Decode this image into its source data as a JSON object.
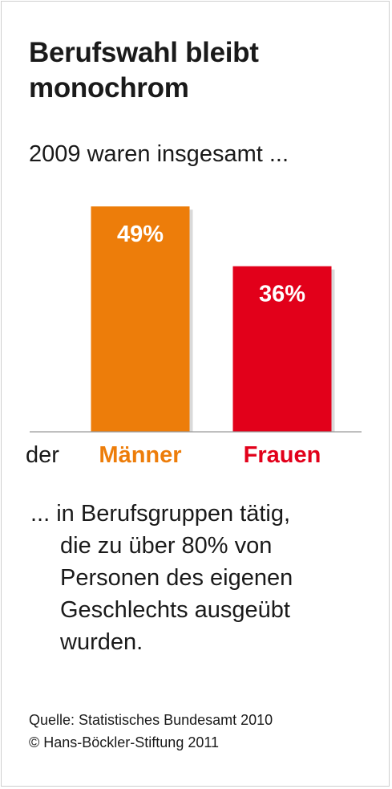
{
  "title": "Berufswahl bleibt monochrom",
  "subtitle": "2009 waren insgesamt ...",
  "x_prefix": "der",
  "body_lines": [
    "... in Berufsgruppen tätig,",
    "die zu über 80% von",
    "Personen des eigenen",
    "Geschlechts ausgeübt",
    "wurden."
  ],
  "source_lines": [
    "Quelle: Statistisches Bundesamt 2010",
    "© Hans-Böckler-Stiftung 2011"
  ],
  "colors": {
    "maenner": "#ed7d0a",
    "frauen": "#e2001a",
    "axis": "#999999",
    "bar_label": "#ffffff"
  },
  "chart_data": {
    "type": "bar",
    "categories": [
      "Männer",
      "Frauen"
    ],
    "values": [
      49,
      36
    ],
    "value_labels": [
      "49%",
      "36%"
    ],
    "ylim": [
      0,
      52
    ]
  }
}
